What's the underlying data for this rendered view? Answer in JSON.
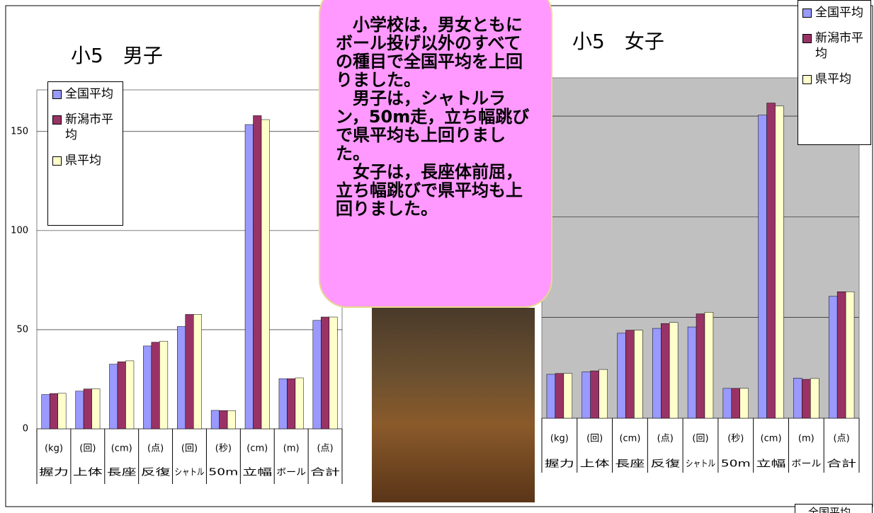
{
  "chart_data": [
    {
      "type": "bar",
      "title": "小5　男子",
      "categories": [
        "握力",
        "上体",
        "長座",
        "反復",
        "シャトル",
        "50m",
        "立幅",
        "ボール",
        "合計"
      ],
      "category_units": [
        "(kg)",
        "(回)",
        "(cm)",
        "(点)",
        "(回)",
        "(秒)",
        "(cm)",
        "(m)",
        "(点)"
      ],
      "series": [
        {
          "name": "全国平均",
          "color": "#9999ff",
          "values": [
            17.3,
            19,
            32.6,
            41.8,
            51.6,
            9.3,
            153.5,
            25.3,
            54.7
          ]
        },
        {
          "name": "新潟市平均",
          "color": "#993366",
          "values": [
            17.8,
            20.1,
            33.8,
            43.7,
            57.7,
            9.2,
            158,
            25.3,
            56.4
          ]
        },
        {
          "name": "県平均",
          "color": "#ffffcc",
          "values": [
            17.9,
            20.2,
            34.3,
            44.2,
            57.7,
            9.2,
            156,
            25.7,
            56.4
          ]
        }
      ],
      "ylim": [
        0,
        171
      ],
      "yticks": [
        0,
        50,
        100,
        150
      ],
      "grid": true
    },
    {
      "type": "bar",
      "title": "小5　女子",
      "categories": [
        "握力",
        "上体",
        "長座",
        "反復",
        "シャトル",
        "50m",
        "立幅",
        "ボール",
        "合計"
      ],
      "category_units": [
        "(kg)",
        "(回)",
        "(cm)",
        "(点)",
        "(回)",
        "(秒)",
        "(cm)",
        "(m)",
        "(点)"
      ],
      "series": [
        {
          "name": "全国平均",
          "color": "#9999ff",
          "values": [
            21.8,
            23,
            42.2,
            44.6,
            45.3,
            14.8,
            150.5,
            19.9,
            60.5
          ]
        },
        {
          "name": "新潟市平均",
          "color": "#993366",
          "values": [
            22.2,
            23.5,
            43.7,
            47,
            51.8,
            14.8,
            156.5,
            19.3,
            62.8
          ]
        },
        {
          "name": "県平均",
          "color": "#ffffcc",
          "values": [
            22.2,
            24.2,
            43.7,
            47.5,
            52.6,
            14.8,
            155,
            19.7,
            62.8
          ]
        }
      ],
      "ylim": [
        0,
        169
      ],
      "yticks": [
        0,
        50,
        100,
        150
      ],
      "grid": true
    }
  ],
  "callout": {
    "paragraphs": [
      "小学校は，男女ともにボール投げ以外のすべての種目で全国平均を上回りました。",
      "男子は，シャトルラン，50m走，立ち幅跳びで県平均も上回りました。",
      "女子は，長座体前屈，立ち幅跳びで県平均も上回りました。"
    ]
  },
  "footer_legend": "全国平均"
}
